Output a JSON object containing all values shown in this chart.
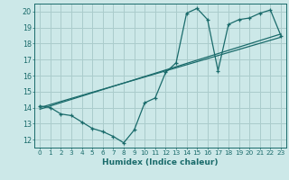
{
  "xlabel": "Humidex (Indice chaleur)",
  "bg_color": "#cce8e8",
  "grid_color": "#aacccc",
  "line_color": "#1a6b6b",
  "xlim": [
    -0.5,
    23.5
  ],
  "ylim": [
    11.5,
    20.5
  ],
  "xticks": [
    0,
    1,
    2,
    3,
    4,
    5,
    6,
    7,
    8,
    9,
    10,
    11,
    12,
    13,
    14,
    15,
    16,
    17,
    18,
    19,
    20,
    21,
    22,
    23
  ],
  "yticks": [
    12,
    13,
    14,
    15,
    16,
    17,
    18,
    19,
    20
  ],
  "series1_x": [
    0,
    1,
    2,
    3,
    4,
    5,
    6,
    7,
    8,
    9,
    10,
    11,
    12,
    13,
    14,
    15,
    16,
    17,
    18,
    19,
    20,
    21,
    22,
    23
  ],
  "series1_y": [
    14.1,
    14.0,
    13.6,
    13.5,
    13.1,
    12.7,
    12.5,
    12.2,
    11.8,
    12.6,
    14.3,
    14.6,
    16.2,
    16.8,
    19.9,
    20.2,
    19.5,
    16.3,
    19.2,
    19.5,
    19.6,
    19.9,
    20.1,
    18.5
  ],
  "series2_x": [
    0,
    23
  ],
  "series2_y": [
    14.0,
    18.4
  ],
  "series3_x": [
    0,
    23
  ],
  "series3_y": [
    13.9,
    18.6
  ]
}
